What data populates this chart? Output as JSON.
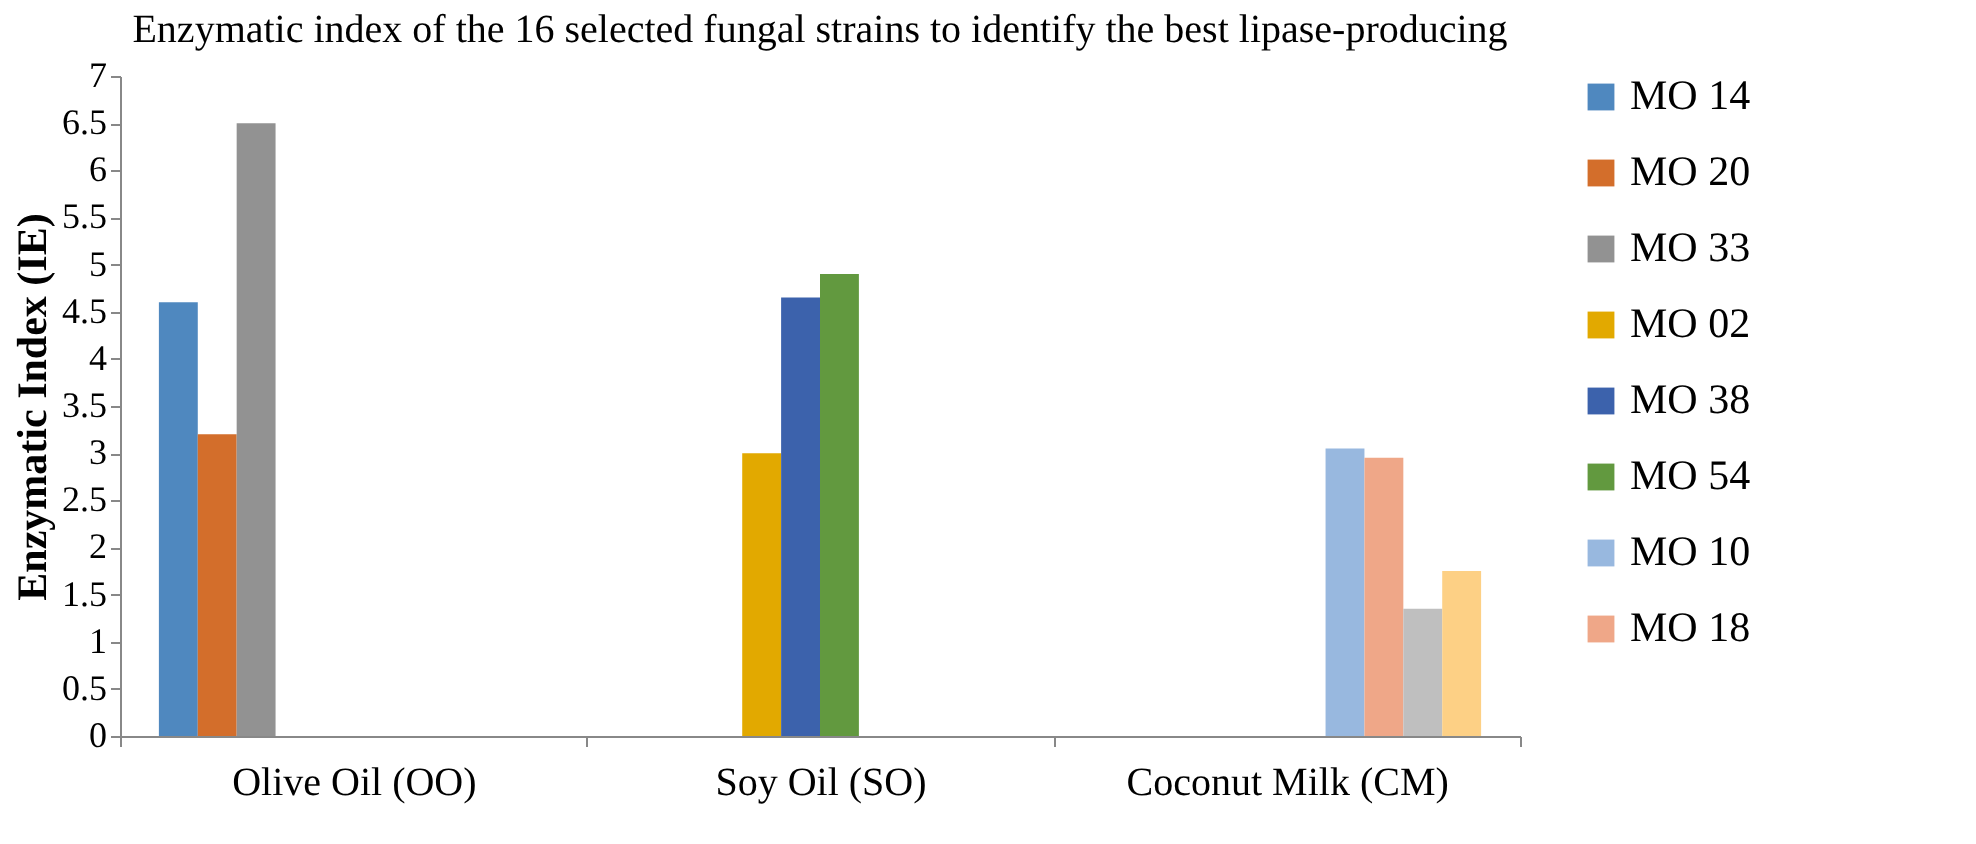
{
  "chart_data": {
    "type": "bar",
    "title": "Enzymatic index of the 16 selected fungal strains to identify the best lipase-producing",
    "ylabel": "Enzymatic Index (IE)",
    "categories": [
      "Olive Oil (OO)",
      "Soy Oil (SO)",
      "Coconut Milk (CM)"
    ],
    "series": [
      {
        "name": "MO 14",
        "color": "#4f88bf",
        "values": [
          4.6,
          null,
          null
        ]
      },
      {
        "name": "MO 20",
        "color": "#d36e2b",
        "values": [
          3.2,
          null,
          null
        ]
      },
      {
        "name": "MO 33",
        "color": "#929292",
        "values": [
          6.5,
          null,
          null
        ]
      },
      {
        "name": "MO 02",
        "color": "#e2a900",
        "values": [
          null,
          3.0,
          null
        ]
      },
      {
        "name": "MO 38",
        "color": "#3c62ac",
        "values": [
          null,
          4.65,
          null
        ]
      },
      {
        "name": "MO 54",
        "color": "#62993f",
        "values": [
          null,
          4.9,
          null
        ]
      },
      {
        "name": "MO 10",
        "color": "#98b8df",
        "values": [
          null,
          null,
          3.05
        ]
      },
      {
        "name": "MO 18",
        "color": "#efa788",
        "values": [
          null,
          null,
          2.95
        ]
      },
      {
        "color": "#bfbfbf",
        "values": [
          null,
          null,
          1.35
        ]
      },
      {
        "color": "#fdd085",
        "values": [
          null,
          null,
          1.75
        ]
      }
    ],
    "ylim": [
      0,
      7
    ],
    "yticks": [
      0,
      0.5,
      1,
      1.5,
      2,
      2.5,
      3,
      3.5,
      4,
      4.5,
      5,
      5.5,
      6,
      6.5,
      7
    ],
    "grid": false,
    "legend": "right"
  }
}
